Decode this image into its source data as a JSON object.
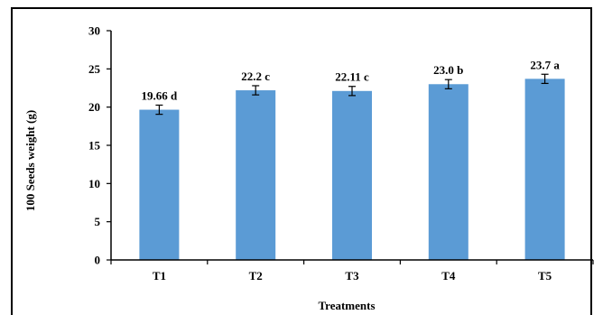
{
  "chart_data": {
    "type": "bar",
    "categories": [
      "T1",
      "T2",
      "T3",
      "T4",
      "T5"
    ],
    "values": [
      19.66,
      22.2,
      22.11,
      23.0,
      23.7
    ],
    "errors": [
      0.6,
      0.6,
      0.6,
      0.6,
      0.6
    ],
    "data_labels": [
      "19.66 d",
      "22.2 c",
      "22.11 c",
      "23.0 b",
      "23.7 a"
    ],
    "title": "",
    "xlabel": "Treatments",
    "ylabel": "100 Seeds weight (g)",
    "ylim": [
      0,
      30
    ],
    "yticks": [
      0,
      5,
      10,
      15,
      20,
      25,
      30
    ],
    "grid": false,
    "colors": {
      "bar": "#5b9bd5",
      "axis": "#000000"
    }
  }
}
